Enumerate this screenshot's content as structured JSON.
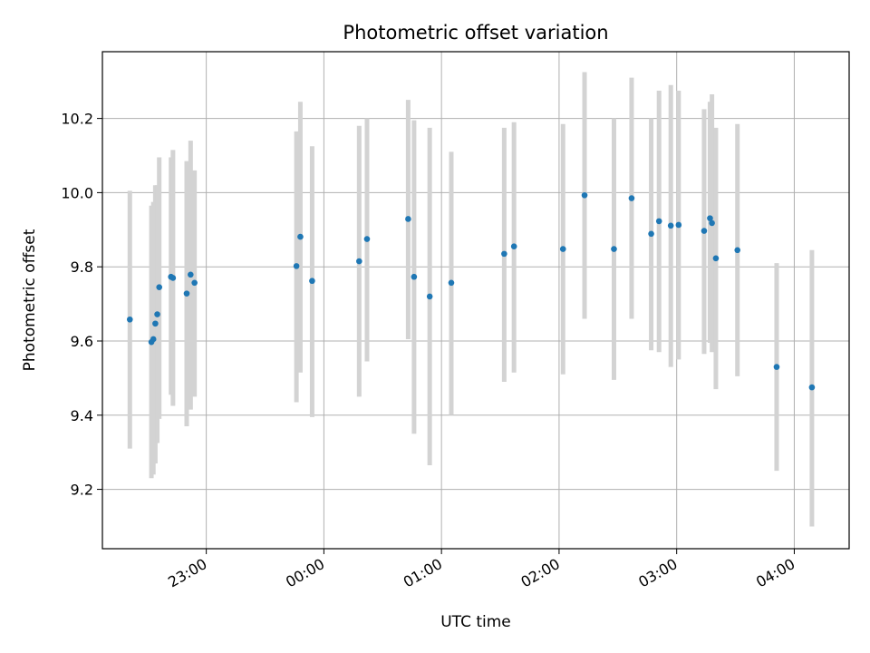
{
  "chart_data": {
    "type": "scatter",
    "title": "Photometric offset variation",
    "xlabel": "UTC time",
    "ylabel": "Photometric offset",
    "xlim": [
      "22:07",
      "04:28"
    ],
    "ylim": [
      9.04,
      10.38
    ],
    "x_ticks": [
      "23:00",
      "00:00",
      "01:00",
      "02:00",
      "03:00",
      "04:00"
    ],
    "y_ticks": [
      9.2,
      9.4,
      9.6,
      9.8,
      10.0,
      10.2
    ],
    "grid": true,
    "marker_color": "#1f77b4",
    "errorbar_color": "#d3d3d3",
    "points": [
      {
        "t": "22:21",
        "y": 9.658,
        "lo": 9.31,
        "hi": 10.005
      },
      {
        "t": "22:32",
        "y": 9.597,
        "lo": 9.23,
        "hi": 9.965
      },
      {
        "t": "22:33",
        "y": 9.605,
        "lo": 9.24,
        "hi": 9.975
      },
      {
        "t": "22:34",
        "y": 9.647,
        "lo": 9.27,
        "hi": 10.02
      },
      {
        "t": "22:35",
        "y": 9.672,
        "lo": 9.325,
        "hi": 10.02
      },
      {
        "t": "22:36",
        "y": 9.745,
        "lo": 9.39,
        "hi": 10.095
      },
      {
        "t": "22:42",
        "y": 9.773,
        "lo": 9.455,
        "hi": 10.095
      },
      {
        "t": "22:43",
        "y": 9.77,
        "lo": 9.425,
        "hi": 10.115
      },
      {
        "t": "22:50",
        "y": 9.728,
        "lo": 9.37,
        "hi": 10.085
      },
      {
        "t": "22:52",
        "y": 9.779,
        "lo": 9.415,
        "hi": 10.14
      },
      {
        "t": "22:54",
        "y": 9.757,
        "lo": 9.45,
        "hi": 10.06
      },
      {
        "t": "23:46",
        "y": 9.802,
        "lo": 9.435,
        "hi": 10.165
      },
      {
        "t": "23:48",
        "y": 9.881,
        "lo": 9.515,
        "hi": 10.245
      },
      {
        "t": "23:54",
        "y": 9.762,
        "lo": 9.395,
        "hi": 10.125
      },
      {
        "t": "00:18",
        "y": 9.815,
        "lo": 9.45,
        "hi": 10.18
      },
      {
        "t": "00:22",
        "y": 9.875,
        "lo": 9.545,
        "hi": 10.2
      },
      {
        "t": "00:43",
        "y": 9.929,
        "lo": 9.605,
        "hi": 10.25
      },
      {
        "t": "00:46",
        "y": 9.773,
        "lo": 9.35,
        "hi": 10.195
      },
      {
        "t": "00:54",
        "y": 9.72,
        "lo": 9.265,
        "hi": 10.175
      },
      {
        "t": "01:05",
        "y": 9.757,
        "lo": 9.4,
        "hi": 10.11
      },
      {
        "t": "01:32",
        "y": 9.835,
        "lo": 9.49,
        "hi": 10.175
      },
      {
        "t": "01:37",
        "y": 9.855,
        "lo": 9.515,
        "hi": 10.19
      },
      {
        "t": "02:02",
        "y": 9.848,
        "lo": 9.51,
        "hi": 10.185
      },
      {
        "t": "02:13",
        "y": 9.993,
        "lo": 9.66,
        "hi": 10.325
      },
      {
        "t": "02:28",
        "y": 9.848,
        "lo": 9.495,
        "hi": 10.2
      },
      {
        "t": "02:37",
        "y": 9.985,
        "lo": 9.66,
        "hi": 10.31
      },
      {
        "t": "02:47",
        "y": 9.889,
        "lo": 9.575,
        "hi": 10.2
      },
      {
        "t": "02:51",
        "y": 9.923,
        "lo": 9.57,
        "hi": 10.275
      },
      {
        "t": "02:57",
        "y": 9.911,
        "lo": 9.53,
        "hi": 10.29
      },
      {
        "t": "03:01",
        "y": 9.913,
        "lo": 9.55,
        "hi": 10.275
      },
      {
        "t": "03:14",
        "y": 9.897,
        "lo": 9.565,
        "hi": 10.225
      },
      {
        "t": "03:17",
        "y": 9.931,
        "lo": 9.595,
        "hi": 10.245
      },
      {
        "t": "03:18",
        "y": 9.918,
        "lo": 9.57,
        "hi": 10.265
      },
      {
        "t": "03:20",
        "y": 9.823,
        "lo": 9.47,
        "hi": 10.175
      },
      {
        "t": "03:31",
        "y": 9.845,
        "lo": 9.505,
        "hi": 10.185
      },
      {
        "t": "03:51",
        "y": 9.53,
        "lo": 9.25,
        "hi": 9.81
      },
      {
        "t": "04:09",
        "y": 9.475,
        "lo": 9.1,
        "hi": 9.845
      }
    ]
  }
}
